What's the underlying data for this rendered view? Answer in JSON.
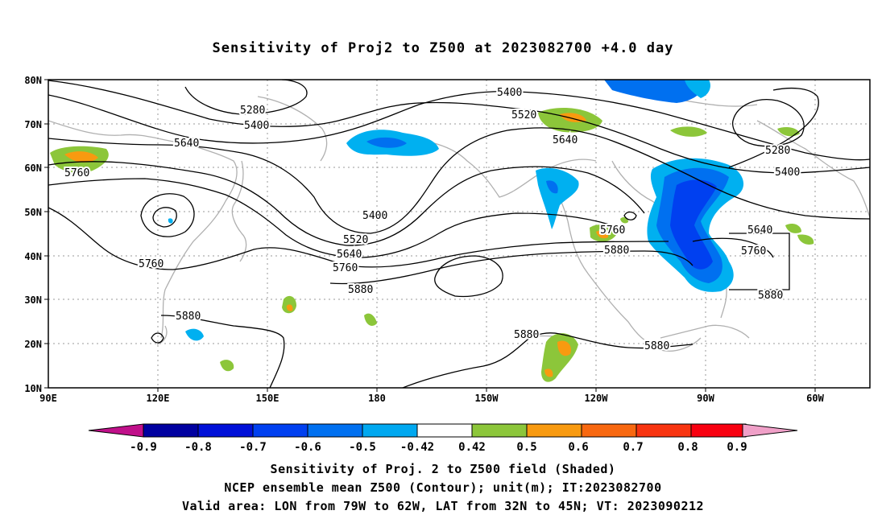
{
  "title": "Sensitivity of Proj2 to Z500 at 2023082700 +4.0 day",
  "captions": {
    "line1": "Sensitivity of Proj. 2 to Z500 field (Shaded)",
    "line2": "NCEP ensemble mean Z500 (Contour); unit(m); IT:2023082700",
    "line3": "Valid area: LON from 79W to 62W, LAT from 32N to 45N; VT: 2023090212"
  },
  "map": {
    "lat_labels": [
      "80N",
      "70N",
      "60N",
      "50N",
      "40N",
      "30N",
      "20N",
      "10N"
    ],
    "lon_labels": [
      "90E",
      "120E",
      "150E",
      "180",
      "150W",
      "120W",
      "90W",
      "60W"
    ],
    "grid": true,
    "contour_labels": [
      "5400",
      "5280",
      "5400",
      "5520",
      "5640",
      "5640",
      "5760",
      "5400",
      "5520",
      "5640",
      "5760",
      "5880",
      "5760",
      "5880",
      "5760",
      "5880",
      "5880",
      "5880",
      "5640",
      "5760",
      "5880",
      "5280",
      "5400"
    ],
    "valid_area_box": {
      "lon": [
        "79W",
        "62W"
      ],
      "lat": [
        "32N",
        "45N"
      ]
    }
  },
  "colorbar": {
    "labels": [
      "-0.9",
      "-0.8",
      "-0.7",
      "-0.6",
      "-0.5",
      "-0.42",
      "0.42",
      "0.5",
      "0.6",
      "0.7",
      "0.8",
      "0.9"
    ],
    "colors": [
      "#0000a0",
      "#0010d8",
      "#0040f0",
      "#0070f0",
      "#00a8f0",
      "#ffffff",
      "#8cc63a",
      "#f89a10",
      "#f86810",
      "#f83410",
      "#f80010"
    ],
    "low_extend_color": "#c0108a",
    "high_extend_color": "#f0a0c8"
  }
}
